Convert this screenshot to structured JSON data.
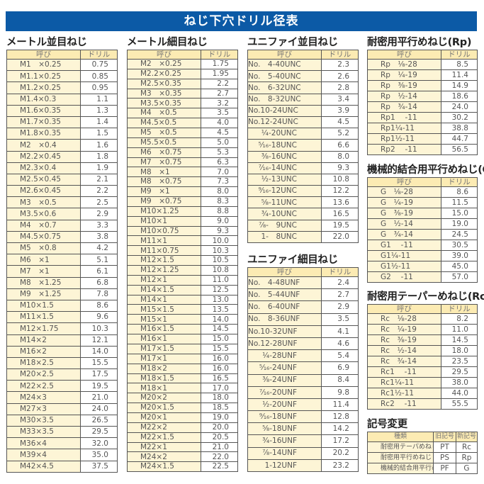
{
  "title": "ねじ下穴ドリル径表",
  "colors": {
    "banner": "#0c5aa6",
    "header_bg": "#fcebb3",
    "name_bg": "#fdf5d6"
  },
  "sections": [
    {
      "title": "メートル並目ねじ",
      "headers": [
        "呼び",
        "ドリル"
      ],
      "align": "l",
      "rows": [
        [
          "M1　×0.25",
          "0.75"
        ],
        [
          "M1.1×0.25",
          "0.85"
        ],
        [
          "M1.2×0.25",
          "0.95"
        ],
        [
          "M1.4×0.3",
          "1.1"
        ],
        [
          "M1.6×0.35",
          "1.3"
        ],
        [
          "M1.7×0.35",
          "1.4"
        ],
        [
          "M1.8×0.35",
          "1.5"
        ],
        [
          "M2　×0.4",
          "1.6"
        ],
        [
          "M2.2×0.45",
          "1.8"
        ],
        [
          "M2.3×0.4",
          "1.9"
        ],
        [
          "M2.5×0.45",
          "2.1"
        ],
        [
          "M2.6×0.45",
          "2.2"
        ],
        [
          "M3　×0.5",
          "2.5"
        ],
        [
          "M3.5×0.6",
          "2.9"
        ],
        [
          "M4　×0.7",
          "3.3"
        ],
        [
          "M4.5×0.75",
          "3.8"
        ],
        [
          "M5　×0.8",
          "4.2"
        ],
        [
          "M6　×1",
          "5.1"
        ],
        [
          "M7　×1",
          "6.1"
        ],
        [
          "M8　×1.25",
          "6.8"
        ],
        [
          "M9　×1.25",
          "7.8"
        ],
        [
          "M10×1.5",
          "8.6"
        ],
        [
          "M11×1.5",
          "9.6"
        ],
        [
          "M12×1.75",
          "10.3"
        ],
        [
          "M14×2",
          "12.1"
        ],
        [
          "M16×2",
          "14.0"
        ],
        [
          "M18×2.5",
          "15.5"
        ],
        [
          "M20×2.5",
          "17.5"
        ],
        [
          "M22×2.5",
          "19.5"
        ],
        [
          "M24×3",
          "21.0"
        ],
        [
          "M27×3",
          "24.0"
        ],
        [
          "M30×3.5",
          "26.5"
        ],
        [
          "M33×3.5",
          "29.5"
        ],
        [
          "M36×4",
          "32.0"
        ],
        [
          "M39×4",
          "35.0"
        ],
        [
          "M42×4.5",
          "37.5"
        ]
      ]
    },
    {
      "title": "メートル細目ねじ",
      "headers": [
        "呼び",
        "ドリル"
      ],
      "align": "l",
      "rows": [
        [
          "M2　×0.25",
          "1.75"
        ],
        [
          "M2.2×0.25",
          "1.95"
        ],
        [
          "M2.5×0.35",
          "2.2"
        ],
        [
          "M3　×0.35",
          "2.7"
        ],
        [
          "M3.5×0.35",
          "3.2"
        ],
        [
          "M4　×0.5",
          "3.5"
        ],
        [
          "M4.5×0.5",
          "4.0"
        ],
        [
          "M5　×0.5",
          "4.5"
        ],
        [
          "M5.5×0.5",
          "5.0"
        ],
        [
          "M6　×0.75",
          "5.3"
        ],
        [
          "M7　×0.75",
          "6.3"
        ],
        [
          "M8　×1",
          "7.0"
        ],
        [
          "M8　×0.75",
          "7.3"
        ],
        [
          "M9　×1",
          "8.0"
        ],
        [
          "M9　×0.75",
          "8.3"
        ],
        [
          "M10×1.25",
          "8.8"
        ],
        [
          "M10×1",
          "9.0"
        ],
        [
          "M10×0.75",
          "9.3"
        ],
        [
          "M11×1",
          "10.0"
        ],
        [
          "M11×0.75",
          "10.3"
        ],
        [
          "M12×1.5",
          "10.5"
        ],
        [
          "M12×1.25",
          "10.8"
        ],
        [
          "M12×1",
          "11.0"
        ],
        [
          "M14×1.5",
          "12.5"
        ],
        [
          "M14×1",
          "13.0"
        ],
        [
          "M15×1.5",
          "13.5"
        ],
        [
          "M15×1",
          "14.0"
        ],
        [
          "M16×1.5",
          "14.5"
        ],
        [
          "M16×1",
          "15.0"
        ],
        [
          "M17×1.5",
          "15.5"
        ],
        [
          "M17×1",
          "16.0"
        ],
        [
          "M18×2",
          "16.0"
        ],
        [
          "M18×1.5",
          "16.5"
        ],
        [
          "M18×1",
          "17.0"
        ],
        [
          "M20×2",
          "18.0"
        ],
        [
          "M20×1.5",
          "18.5"
        ],
        [
          "M20×1",
          "19.0"
        ],
        [
          "M22×2",
          "20.0"
        ],
        [
          "M22×1.5",
          "20.5"
        ],
        [
          "M22×1",
          "21.0"
        ],
        [
          "M24×2",
          "22.0"
        ],
        [
          "M24×1.5",
          "22.5"
        ]
      ]
    },
    {
      "title": "ユニファイ並目ねじ",
      "headers": [
        "呼び",
        "ドリル"
      ],
      "align": "r",
      "rows": [
        [
          "No.　4-40UNC",
          "2.3"
        ],
        [
          "No.　5-40UNC",
          "2.6"
        ],
        [
          "No.　6-32UNC",
          "2.8"
        ],
        [
          "No.　8-32UNC",
          "3.4"
        ],
        [
          "No.10-24UNC",
          "3.9"
        ],
        [
          "No.12-24UNC",
          "4.5"
        ],
        [
          "¹⁄₄-20UNC",
          "5.2"
        ],
        [
          "⁵⁄₁₆-18UNC",
          "6.6"
        ],
        [
          "³⁄₈-16UNC",
          "8.0"
        ],
        [
          "⁷⁄₁₆-14UNC",
          "9.3"
        ],
        [
          "¹⁄₂-13UNC",
          "10.8"
        ],
        [
          "⁹⁄₁₆-12UNC",
          "12.2"
        ],
        [
          "⁵⁄₈-11UNC",
          "13.6"
        ],
        [
          "³⁄₄-10UNC",
          "16.5"
        ],
        [
          "⁷⁄₈-　9UNC",
          "19.5"
        ],
        [
          "1-　8UNC",
          "22.0"
        ]
      ]
    },
    {
      "title": "ユニファイ細目ねじ",
      "headers": [
        "呼び",
        "ドリル"
      ],
      "align": "r",
      "rows": [
        [
          "No.　4-48UNF",
          "2.4"
        ],
        [
          "No.　5-44UNF",
          "2.7"
        ],
        [
          "No.　6-40UNF",
          "2.9"
        ],
        [
          "No.　8-36UNF",
          "3.5"
        ],
        [
          "No.10-32UNF",
          "4.1"
        ],
        [
          "No.12-28UNF",
          "4.6"
        ],
        [
          "¹⁄₄-28UNF",
          "5.4"
        ],
        [
          "⁵⁄₁₆-24UNF",
          "6.9"
        ],
        [
          "³⁄₈-24UNF",
          "8.4"
        ],
        [
          "⁷⁄₁₆-20UNF",
          "9.8"
        ],
        [
          "¹⁄₂-20UNF",
          "11.4"
        ],
        [
          "⁹⁄₁₆-18UNF",
          "12.8"
        ],
        [
          "⁵⁄₈-18UNF",
          "14.2"
        ],
        [
          "³⁄₄-16UNF",
          "17.2"
        ],
        [
          "⁷⁄₈-14UNF",
          "20.2"
        ],
        [
          "1-12UNF",
          "23.2"
        ]
      ]
    },
    {
      "title": "耐密用平行めねじ(Rp)",
      "headers": [
        "呼び",
        "ドリル"
      ],
      "align": "l",
      "rows": [
        [
          "Rp　¹⁄₈-28",
          "8.5"
        ],
        [
          "Rp　¹⁄₄-19",
          "11.4"
        ],
        [
          "Rp　³⁄₈-19",
          "14.9"
        ],
        [
          "Rp　¹⁄₂-14",
          "18.6"
        ],
        [
          "Rp　³⁄₄-14",
          "24.0"
        ],
        [
          "Rp1　 -11",
          "30.2"
        ],
        [
          "Rp1¹⁄₄-11",
          "38.8"
        ],
        [
          "Rp1¹⁄₂-11",
          "44.7"
        ],
        [
          "Rp2　 -11",
          "56.5"
        ]
      ]
    },
    {
      "title": "機械的結合用平行めねじ(G)",
      "headers": [
        "呼び",
        "ドリル"
      ],
      "align": "l",
      "rows": [
        [
          "G　¹⁄₈-28",
          "8.6"
        ],
        [
          "G　¹⁄₄-19",
          "11.5"
        ],
        [
          "G　³⁄₈-19",
          "15.0"
        ],
        [
          "G　¹⁄₂-14",
          "19.0"
        ],
        [
          "G　³⁄₄-14",
          "24.5"
        ],
        [
          "G1　 -11",
          "30.5"
        ],
        [
          "G1¹⁄₄-11",
          "39.0"
        ],
        [
          "G1¹⁄₂-11",
          "45.0"
        ],
        [
          "G2　 -11",
          "57.0"
        ]
      ]
    },
    {
      "title": "耐密用テーパーめねじ(Rc)",
      "headers": [
        "呼び",
        "ドリル"
      ],
      "align": "l",
      "rows": [
        [
          "Rc　¹⁄₈-28",
          "8.2"
        ],
        [
          "Rc　¹⁄₄-19",
          "11.0"
        ],
        [
          "Rc　³⁄₈-19",
          "14.5"
        ],
        [
          "Rc　¹⁄₂-14",
          "18.0"
        ],
        [
          "Rc　³⁄₄-14",
          "23.5"
        ],
        [
          "Rc1　 -11",
          "29.5"
        ],
        [
          "Rc1¹⁄₄-11",
          "38.0"
        ],
        [
          "Rc1¹⁄₂-11",
          "44.0"
        ],
        [
          "Rc2　 -11",
          "55.5"
        ]
      ]
    },
    {
      "title": "記号変更",
      "headers": [
        "種類",
        "旧記号",
        "新記号"
      ],
      "align": "l",
      "rows": [
        [
          "耐密用テーパめねじ",
          "PT",
          "Rc"
        ],
        [
          "耐密用平行めねじ",
          "PS",
          "Rp"
        ],
        [
          "機械的結合用平行めねじ",
          "PF",
          "G"
        ]
      ]
    }
  ]
}
